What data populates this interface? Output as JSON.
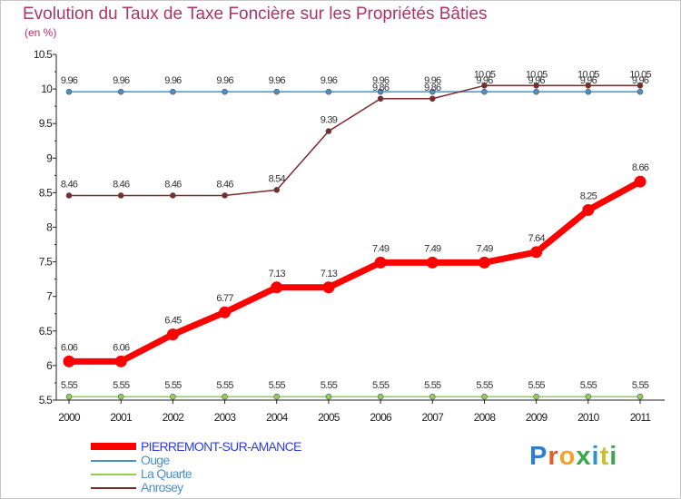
{
  "chart_data": {
    "type": "line",
    "title": "Evolution du Taux de Taxe Foncière sur les Propriétés Bâties",
    "unit_label": "(en %)",
    "categories": [
      "2000",
      "2001",
      "2002",
      "2003",
      "2004",
      "2005",
      "2006",
      "2007",
      "2008",
      "2009",
      "2010",
      "2011"
    ],
    "ylim": [
      5.5,
      10.5
    ],
    "yticks": [
      5.5,
      6,
      6.5,
      7,
      7.5,
      8,
      8.5,
      9,
      9.5,
      10,
      10.5
    ],
    "ytick_labels": [
      "5.5",
      "6",
      "6.5",
      "7",
      "7.5",
      "8",
      "8.5",
      "9",
      "9.5",
      "10",
      "10.5"
    ],
    "grid": false,
    "legend_position": "bottom-left",
    "series": [
      {
        "name": "PIERREMONT-SUR-AMANCE",
        "color": "#ff0000",
        "values": [
          6.06,
          6.06,
          6.45,
          6.77,
          7.13,
          7.13,
          7.49,
          7.49,
          7.49,
          7.64,
          8.25,
          8.66
        ],
        "labels": [
          "6.06",
          "6.06",
          "6.45",
          "6.77",
          "7.13",
          "7.13",
          "7.49",
          "7.49",
          "7.49",
          "7.64",
          "8.25",
          "8.66"
        ]
      },
      {
        "name": "Ouge",
        "color": "#4a90c8",
        "values": [
          9.96,
          9.96,
          9.96,
          9.96,
          9.96,
          9.96,
          9.96,
          9.96,
          9.96,
          9.96,
          9.96,
          9.96
        ],
        "labels": [
          "9.96",
          "9.96",
          "9.96",
          "9.96",
          "9.96",
          "9.96",
          "9.96",
          "9.96",
          "9.96",
          "9.96",
          "9.96",
          "9.96"
        ]
      },
      {
        "name": "La Quarte",
        "color": "#8fd14f",
        "values": [
          5.55,
          5.55,
          5.55,
          5.55,
          5.55,
          5.55,
          5.55,
          5.55,
          5.55,
          5.55,
          5.55,
          5.55
        ],
        "labels": [
          "5.55",
          "5.55",
          "5.55",
          "5.55",
          "5.55",
          "5.55",
          "5.55",
          "5.55",
          "5.55",
          "5.55",
          "5.55",
          "5.55"
        ]
      },
      {
        "name": "Anrosey",
        "color": "#7b2b2b",
        "values": [
          8.46,
          8.46,
          8.46,
          8.46,
          8.54,
          9.39,
          9.86,
          9.86,
          10.05,
          10.05,
          10.05,
          10.05
        ],
        "labels": [
          "8.46",
          "8.46",
          "8.46",
          "8.46",
          "8.54",
          "9.39",
          "9.86",
          "9.86",
          "10.05",
          "10.05",
          "10.05",
          "10.05"
        ]
      }
    ]
  },
  "logo": {
    "text": "Proxiti",
    "letters": [
      "P",
      "r",
      "o",
      "x",
      "i",
      "t",
      "i"
    ]
  }
}
